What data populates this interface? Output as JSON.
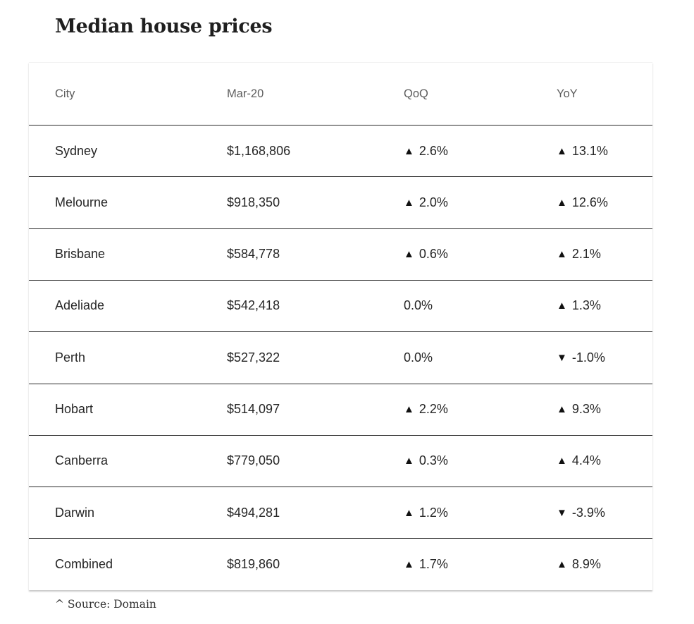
{
  "title": "Median house prices",
  "source": "^ Source: Domain",
  "icons": {
    "up": "▲",
    "down": "▼"
  },
  "chart_data": {
    "type": "table",
    "title": "Median house prices",
    "columns": [
      "City",
      "Mar-20",
      "QoQ",
      "YoY"
    ],
    "rows": [
      {
        "city": "Sydney",
        "price": "$1,168,806",
        "qoq": {
          "dir": "up",
          "text": "2.6%"
        },
        "yoy": {
          "dir": "up",
          "text": "13.1%"
        }
      },
      {
        "city": "Melourne",
        "price": "$918,350",
        "qoq": {
          "dir": "up",
          "text": "2.0%"
        },
        "yoy": {
          "dir": "up",
          "text": "12.6%"
        }
      },
      {
        "city": "Brisbane",
        "price": "$584,778",
        "qoq": {
          "dir": "up",
          "text": "0.6%"
        },
        "yoy": {
          "dir": "up",
          "text": "2.1%"
        }
      },
      {
        "city": "Adeliade",
        "price": "$542,418",
        "qoq": {
          "dir": "none",
          "text": "0.0%"
        },
        "yoy": {
          "dir": "up",
          "text": "1.3%"
        }
      },
      {
        "city": "Perth",
        "price": "$527,322",
        "qoq": {
          "dir": "none",
          "text": "0.0%"
        },
        "yoy": {
          "dir": "down",
          "text": "-1.0%"
        }
      },
      {
        "city": "Hobart",
        "price": "$514,097",
        "qoq": {
          "dir": "up",
          "text": "2.2%"
        },
        "yoy": {
          "dir": "up",
          "text": "9.3%"
        }
      },
      {
        "city": "Canberra",
        "price": "$779,050",
        "qoq": {
          "dir": "up",
          "text": "0.3%"
        },
        "yoy": {
          "dir": "up",
          "text": "4.4%"
        }
      },
      {
        "city": "Darwin",
        "price": "$494,281",
        "qoq": {
          "dir": "up",
          "text": "1.2%"
        },
        "yoy": {
          "dir": "down",
          "text": "-3.9%"
        }
      },
      {
        "city": "Combined",
        "price": "$819,860",
        "qoq": {
          "dir": "up",
          "text": "1.7%"
        },
        "yoy": {
          "dir": "up",
          "text": "8.9%"
        }
      }
    ]
  }
}
